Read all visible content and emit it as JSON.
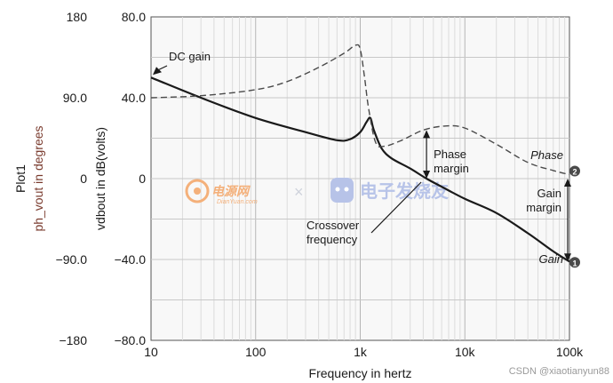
{
  "chart_data": {
    "type": "line",
    "title": "",
    "plot_label": "Plot1",
    "xlabel": "Frequency in hertz",
    "x_scale": "log",
    "xlim": [
      10,
      100000
    ],
    "x_ticks": [
      {
        "value": 10,
        "label": "10"
      },
      {
        "value": 100,
        "label": "100"
      },
      {
        "value": 1000,
        "label": "1k"
      },
      {
        "value": 10000,
        "label": "10k"
      },
      {
        "value": 100000,
        "label": "100k"
      }
    ],
    "y_left": {
      "label": "ph_vout in degrees",
      "range": [
        -180,
        180
      ],
      "ticks": [
        {
          "value": 180,
          "label": "180"
        },
        {
          "value": 90,
          "label": "90.0"
        },
        {
          "value": 0,
          "label": "0"
        },
        {
          "value": -90,
          "label": "−90.0"
        },
        {
          "value": -180,
          "label": "−180"
        }
      ]
    },
    "y_right": {
      "label": "vdbout in dB(volts)",
      "range": [
        -80,
        80
      ],
      "ticks": [
        {
          "value": 80,
          "label": "80.0"
        },
        {
          "value": 40,
          "label": "40.0"
        },
        {
          "value": 0,
          "label": "0"
        },
        {
          "value": -40,
          "label": "−40.0"
        },
        {
          "value": -80,
          "label": "−80.0"
        }
      ]
    },
    "grid": true,
    "series": [
      {
        "name": "Gain",
        "style": "solid",
        "axis": "dB",
        "points": [
          [
            10,
            50
          ],
          [
            30,
            40
          ],
          [
            100,
            30
          ],
          [
            300,
            23
          ],
          [
            600,
            19
          ],
          [
            800,
            19.5
          ],
          [
            1000,
            23
          ],
          [
            1150,
            28
          ],
          [
            1250,
            30
          ],
          [
            1350,
            24
          ],
          [
            1600,
            15
          ],
          [
            2000,
            10
          ],
          [
            3000,
            5
          ],
          [
            4300,
            0
          ],
          [
            6000,
            -4
          ],
          [
            10000,
            -10
          ],
          [
            20000,
            -17
          ],
          [
            40000,
            -27
          ],
          [
            70000,
            -36
          ],
          [
            100000,
            -41
          ]
        ]
      },
      {
        "name": "Phase",
        "style": "dashed",
        "axis": "dB",
        "points": [
          [
            10,
            40
          ],
          [
            30,
            41
          ],
          [
            100,
            44
          ],
          [
            200,
            48
          ],
          [
            400,
            55
          ],
          [
            700,
            62
          ],
          [
            900,
            66
          ],
          [
            1000,
            64
          ],
          [
            1100,
            50
          ],
          [
            1200,
            35
          ],
          [
            1400,
            18
          ],
          [
            1700,
            16
          ],
          [
            2500,
            19
          ],
          [
            4000,
            24
          ],
          [
            6500,
            26
          ],
          [
            10000,
            25
          ],
          [
            20000,
            17
          ],
          [
            40000,
            8
          ],
          [
            70000,
            4
          ],
          [
            100000,
            2
          ]
        ]
      }
    ],
    "annotations": [
      {
        "name": "dc-gain",
        "text": [
          "DC gain"
        ]
      },
      {
        "name": "phase-margin",
        "text": [
          "Phase",
          "margin"
        ]
      },
      {
        "name": "crossover",
        "text": [
          "Crossover",
          "frequency"
        ]
      },
      {
        "name": "gain-margin",
        "text": [
          "Gain",
          "margin"
        ]
      },
      {
        "name": "phase-curve",
        "text": [
          "Phase"
        ]
      },
      {
        "name": "gain-curve",
        "text": [
          "Gain"
        ]
      }
    ],
    "markers": [
      {
        "name": "marker-1",
        "label": "1",
        "x": 100000,
        "y": -41
      },
      {
        "name": "marker-2",
        "label": "2",
        "x": 100000,
        "y": 2
      }
    ]
  },
  "watermarks": {
    "left_logo": "电源网",
    "left_url": "DianYuan.com",
    "separator": "×",
    "right_logo": "电子发烧友",
    "csdn": "CSDN @xiaotianyun88"
  },
  "colors": {
    "plot_bg": "#f8f8f8",
    "grid": "#c8c8c8",
    "gain_line": "#1a1a1a",
    "phase_line": "#4a4a4a",
    "left_axis_label": "#7a3b2e",
    "watermark_orange": "#f4b07a",
    "watermark_blue": "#b7c3e8"
  }
}
